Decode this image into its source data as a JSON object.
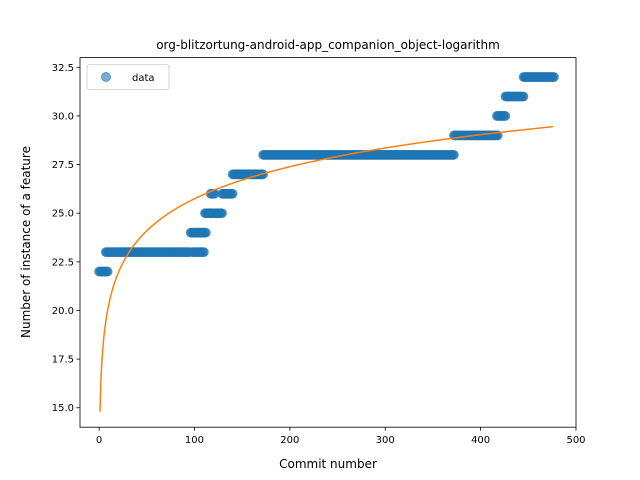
{
  "chart_data": {
    "type": "scatter",
    "title": "org-blitzortung-android-app_companion_object-logarithm",
    "xlabel": "Commit number",
    "ylabel": "Number of instance of a feature",
    "xlim": [
      -20,
      500
    ],
    "ylim": [
      14,
      33
    ],
    "xticks": [
      0,
      100,
      200,
      300,
      400,
      500
    ],
    "yticks": [
      15.0,
      17.5,
      20.0,
      22.5,
      25.0,
      27.5,
      30.0,
      32.5
    ],
    "grid": false,
    "legend": {
      "placement": "top-left",
      "entries": [
        "data"
      ]
    },
    "colors": {
      "scatter": "#1f77b4",
      "fit": "#ff7f0e"
    },
    "series": [
      {
        "name": "data",
        "kind": "scatter",
        "segments": [
          {
            "x_start": 0,
            "x_end": 9,
            "y": 22
          },
          {
            "x_start": 7,
            "x_end": 95,
            "y": 23
          },
          {
            "x_start": 96,
            "x_end": 103,
            "y": 24
          },
          {
            "x_start": 98,
            "x_end": 110,
            "y": 23
          },
          {
            "x_start": 103,
            "x_end": 112,
            "y": 24
          },
          {
            "x_start": 111,
            "x_end": 119,
            "y": 25
          },
          {
            "x_start": 117,
            "x_end": 121,
            "y": 26
          },
          {
            "x_start": 121,
            "x_end": 129,
            "y": 25
          },
          {
            "x_start": 129,
            "x_end": 140,
            "y": 26
          },
          {
            "x_start": 140,
            "x_end": 172,
            "y": 27
          },
          {
            "x_start": 172,
            "x_end": 372,
            "y": 28
          },
          {
            "x_start": 372,
            "x_end": 418,
            "y": 29
          },
          {
            "x_start": 417,
            "x_end": 426,
            "y": 30
          },
          {
            "x_start": 426,
            "x_end": 445,
            "y": 31
          },
          {
            "x_start": 445,
            "x_end": 477,
            "y": 32
          }
        ]
      },
      {
        "kind": "line",
        "fit": "logarithmic",
        "x_start": 1,
        "x_end": 476,
        "y_at_1": 14.8,
        "y_at_476": 29.45
      }
    ]
  }
}
